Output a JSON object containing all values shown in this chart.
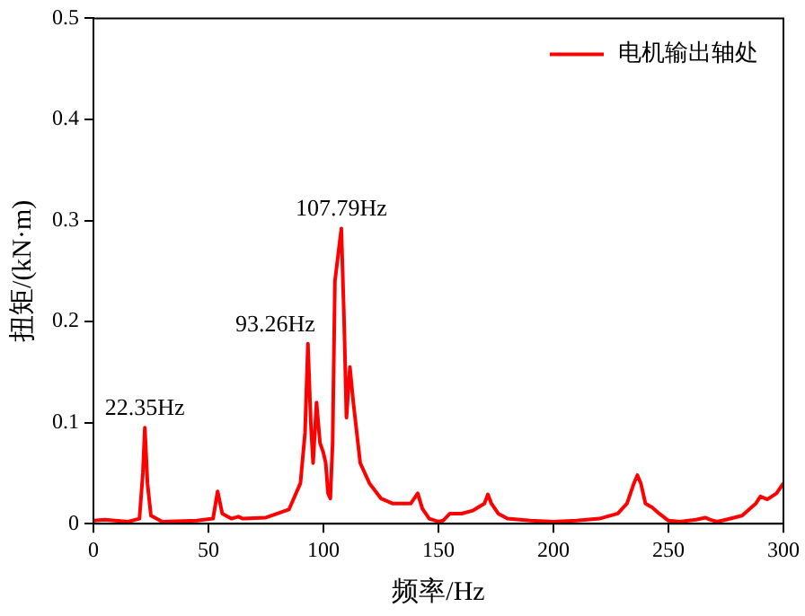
{
  "chart_data": {
    "type": "line",
    "xlabel": "频率/Hz",
    "ylabel": "扭矩/(kN·m)",
    "xlim": [
      0,
      300
    ],
    "xticks": [
      0,
      50,
      100,
      150,
      200,
      250,
      300
    ],
    "ylim": [
      0,
      0.5
    ],
    "yticks": [
      0,
      0.1,
      0.2,
      0.3,
      0.4,
      0.5
    ],
    "legend": "top right",
    "grid": false,
    "marker": "none",
    "line_style": "solid",
    "annotations": [
      {
        "text": "22.35Hz",
        "x": 22.35,
        "y": 0.095
      },
      {
        "text": "93.26Hz",
        "x": 93.26,
        "y": 0.178
      },
      {
        "text": "107.79Hz",
        "x": 107.79,
        "y": 0.292
      }
    ],
    "series": [
      {
        "name": "电机输出轴处",
        "color": "#ff0000",
        "x": [
          0,
          5,
          15,
          20,
          21.5,
          22.35,
          23.5,
          25,
          30,
          45,
          52,
          54,
          56,
          60,
          63,
          65,
          75,
          85,
          90,
          92,
          93.26,
          94.5,
          95.5,
          97,
          98.5,
          100,
          101,
          102,
          103,
          104,
          105,
          107.79,
          109,
          110,
          111.5,
          113,
          116,
          120,
          125,
          130,
          138,
          141,
          143,
          146,
          150,
          152,
          155,
          160,
          165,
          170,
          171.5,
          173,
          176,
          180,
          190,
          200,
          210,
          220,
          228,
          232,
          235,
          236.5,
          238,
          240,
          243,
          246,
          250,
          255,
          262,
          266,
          268,
          271,
          275,
          282,
          288,
          290,
          293,
          297,
          300
        ],
        "values": [
          0.003,
          0.004,
          0.002,
          0.005,
          0.05,
          0.095,
          0.04,
          0.008,
          0.002,
          0.003,
          0.005,
          0.032,
          0.01,
          0.005,
          0.007,
          0.005,
          0.006,
          0.014,
          0.04,
          0.09,
          0.178,
          0.1,
          0.06,
          0.12,
          0.08,
          0.07,
          0.06,
          0.03,
          0.025,
          0.08,
          0.24,
          0.292,
          0.2,
          0.105,
          0.155,
          0.12,
          0.06,
          0.04,
          0.025,
          0.02,
          0.02,
          0.03,
          0.015,
          0.005,
          0.002,
          0.003,
          0.01,
          0.01,
          0.013,
          0.02,
          0.029,
          0.02,
          0.01,
          0.005,
          0.003,
          0.002,
          0.003,
          0.005,
          0.01,
          0.02,
          0.04,
          0.048,
          0.04,
          0.02,
          0.016,
          0.01,
          0.003,
          0.002,
          0.004,
          0.006,
          0.004,
          0.002,
          0.004,
          0.008,
          0.02,
          0.027,
          0.024,
          0.03,
          0.04
        ]
      }
    ]
  }
}
